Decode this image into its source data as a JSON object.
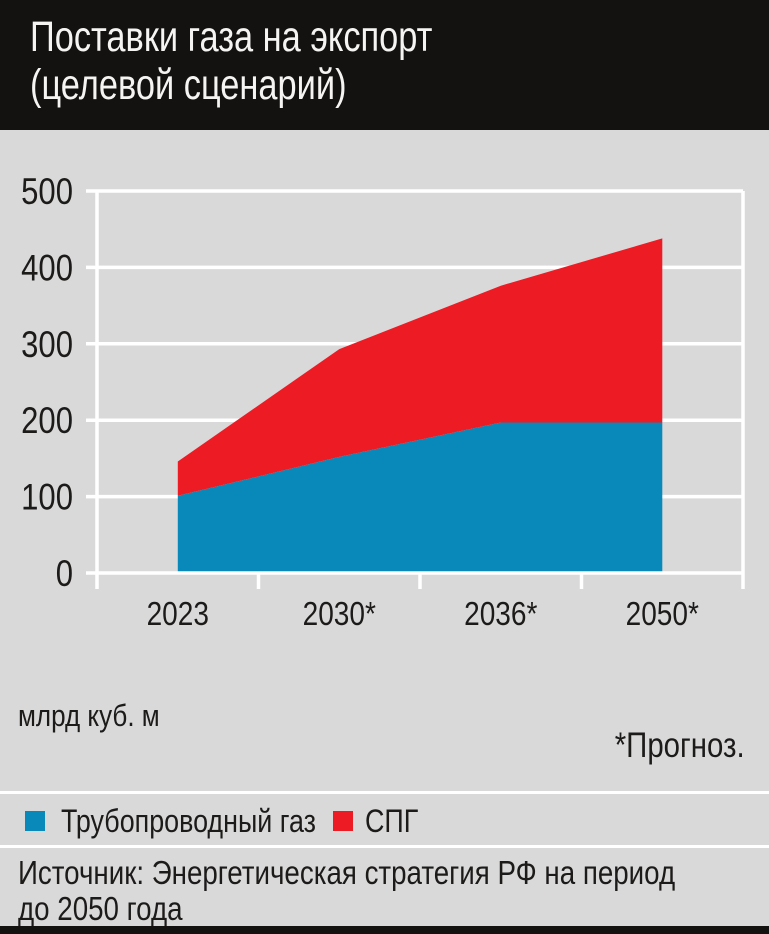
{
  "header": {
    "title_line1": "Поставки газа на экспорт",
    "title_line2": "(целевой сценарий)"
  },
  "chart_data": {
    "type": "area",
    "stacked": true,
    "title": "Поставки газа на экспорт (целевой сценарий)",
    "units": "млрд куб. м",
    "categories": [
      "2023",
      "2030*",
      "2036*",
      "2050*"
    ],
    "series": [
      {
        "name": "Трубопроводный газ",
        "color": "#0988ba",
        "values": [
          101,
          152,
          197,
          197
        ]
      },
      {
        "name": "СПГ",
        "color": "#ec1b24",
        "values": [
          45,
          141,
          179,
          241
        ]
      }
    ],
    "stacked_totals": [
      146,
      293,
      376,
      438
    ],
    "ylim": [
      0,
      500
    ],
    "yticks": [
      0,
      100,
      200,
      300,
      400,
      500
    ],
    "grid": true,
    "legend_position": "bottom"
  },
  "notes": {
    "units_label": "млрд куб. м",
    "forecast_note": "*Прогноз."
  },
  "source": {
    "line1": "Источник: Энергетическая стратегия РФ на период",
    "line2": "до 2050 года"
  },
  "colors": {
    "page_background": "#d9d9d9",
    "title_bar": "#141210",
    "bottom_bar": "#141210",
    "grid": "#ffffff",
    "text": "#1d1b1a",
    "title_text": "#f5f4f2",
    "pipeline": "#0988ba",
    "lng": "#ec1b24"
  }
}
